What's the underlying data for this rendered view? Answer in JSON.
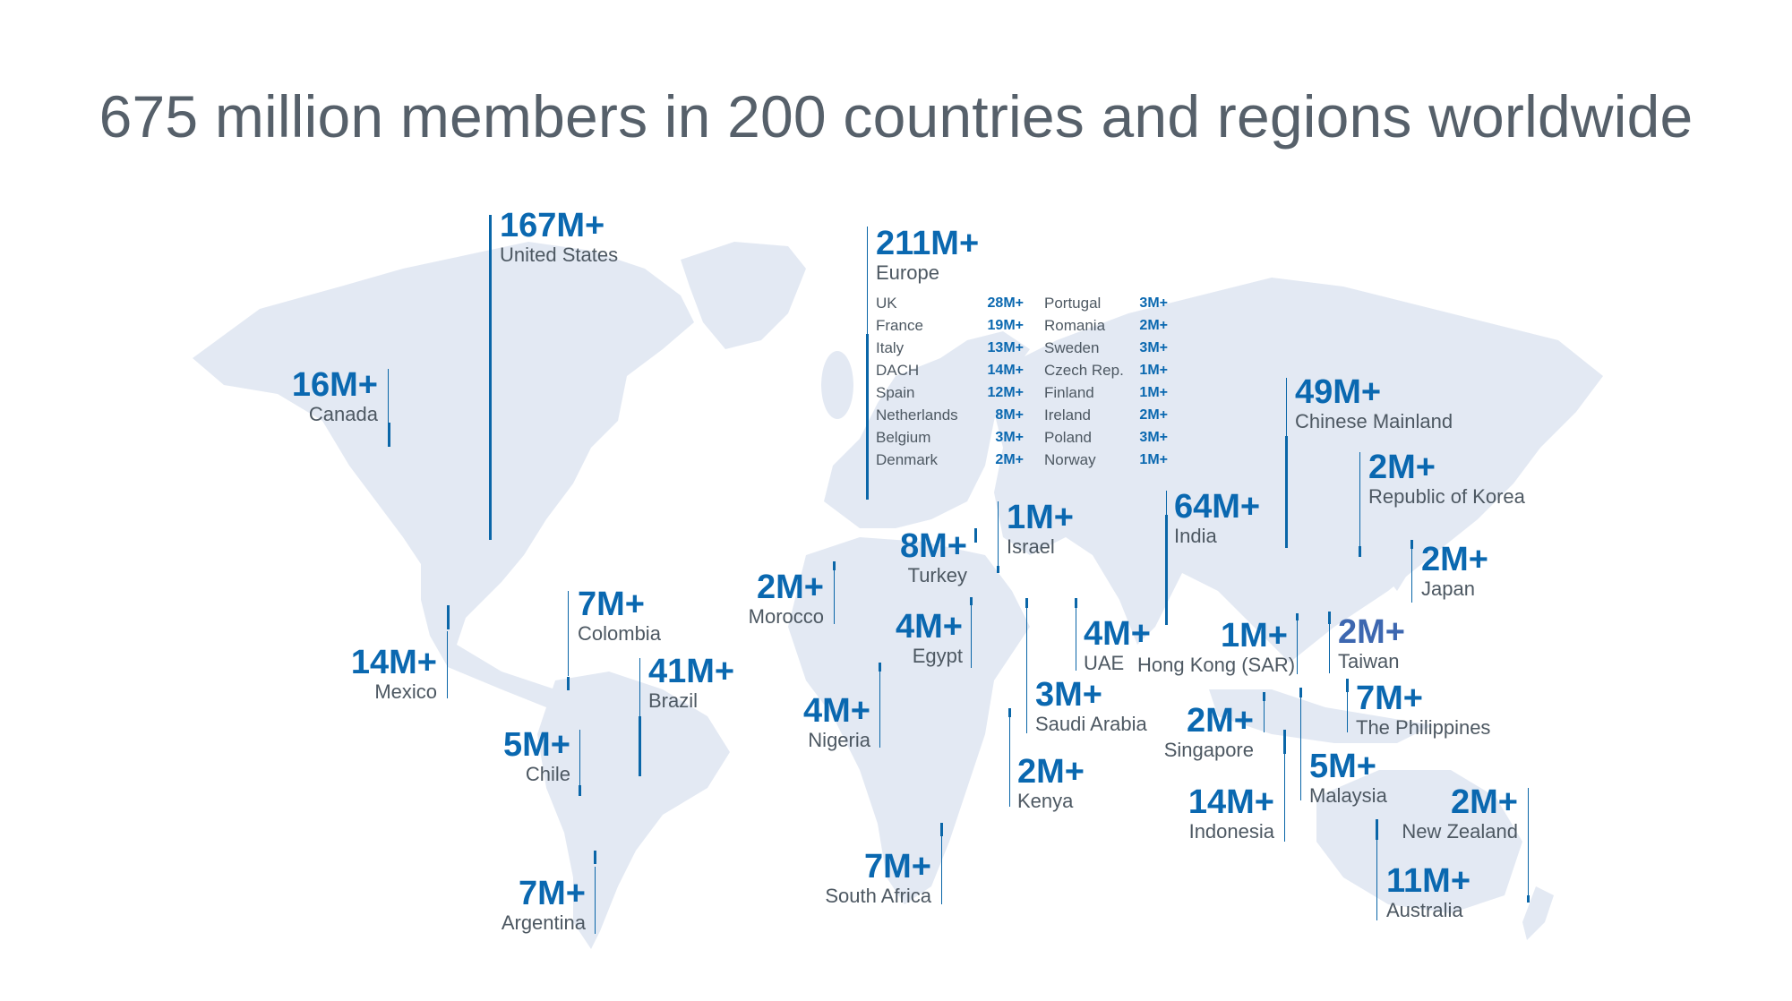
{
  "title": "675 million members in 200 countries and regions worldwide",
  "colors": {
    "accent": "#0a68b0",
    "land": "#e3e9f3",
    "text": "#4d5862",
    "title": "#56606a"
  },
  "regions": {
    "united_states": {
      "value": "167M+",
      "name": "United States"
    },
    "canada": {
      "value": "16M+",
      "name": "Canada"
    },
    "mexico": {
      "value": "14M+",
      "name": "Mexico"
    },
    "colombia": {
      "value": "7M+",
      "name": "Colombia"
    },
    "brazil": {
      "value": "41M+",
      "name": "Brazil"
    },
    "chile": {
      "value": "5M+",
      "name": "Chile"
    },
    "argentina": {
      "value": "7M+",
      "name": "Argentina"
    },
    "europe": {
      "value": "211M+",
      "name": "Europe"
    },
    "morocco": {
      "value": "2M+",
      "name": "Morocco"
    },
    "turkey": {
      "value": "8M+",
      "name": "Turkey"
    },
    "israel": {
      "value": "1M+",
      "name": "Israel"
    },
    "egypt": {
      "value": "4M+",
      "name": "Egypt"
    },
    "nigeria": {
      "value": "4M+",
      "name": "Nigeria"
    },
    "uae": {
      "value": "4M+",
      "name": "UAE"
    },
    "saudi_arabia": {
      "value": "3M+",
      "name": "Saudi Arabia"
    },
    "kenya": {
      "value": "2M+",
      "name": "Kenya"
    },
    "south_africa": {
      "value": "7M+",
      "name": "South Africa"
    },
    "india": {
      "value": "64M+",
      "name": "India"
    },
    "chinese_mainland": {
      "value": "49M+",
      "name": "Chinese Mainland"
    },
    "korea": {
      "value": "2M+",
      "name": "Republic of Korea"
    },
    "japan": {
      "value": "2M+",
      "name": "Japan"
    },
    "hong_kong": {
      "value": "1M+",
      "name": "Hong Kong (SAR)"
    },
    "taiwan": {
      "value": "2M+",
      "name": "Taiwan"
    },
    "singapore": {
      "value": "2M+",
      "name": "Singapore"
    },
    "philippines": {
      "value": "7M+",
      "name": "The Philippines"
    },
    "malaysia": {
      "value": "5M+",
      "name": "Malaysia"
    },
    "indonesia": {
      "value": "14M+",
      "name": "Indonesia"
    },
    "new_zealand": {
      "value": "2M+",
      "name": "New Zealand"
    },
    "australia": {
      "value": "11M+",
      "name": "Australia"
    }
  },
  "europe_breakdown": {
    "col1": [
      {
        "name": "UK",
        "value": "28M+"
      },
      {
        "name": "France",
        "value": "19M+"
      },
      {
        "name": "Italy",
        "value": "13M+"
      },
      {
        "name": "DACH",
        "value": "14M+"
      },
      {
        "name": "Spain",
        "value": "12M+"
      },
      {
        "name": "Netherlands",
        "value": "8M+"
      },
      {
        "name": "Belgium",
        "value": "3M+"
      },
      {
        "name": "Denmark",
        "value": "2M+"
      }
    ],
    "col2": [
      {
        "name": "Portugal",
        "value": "3M+"
      },
      {
        "name": "Romania",
        "value": "2M+"
      },
      {
        "name": "Sweden",
        "value": "3M+"
      },
      {
        "name": "Czech Rep.",
        "value": "1M+"
      },
      {
        "name": "Finland",
        "value": "1M+"
      },
      {
        "name": "Ireland",
        "value": "2M+"
      },
      {
        "name": "Poland",
        "value": "3M+"
      },
      {
        "name": "Norway",
        "value": "1M+"
      }
    ]
  }
}
